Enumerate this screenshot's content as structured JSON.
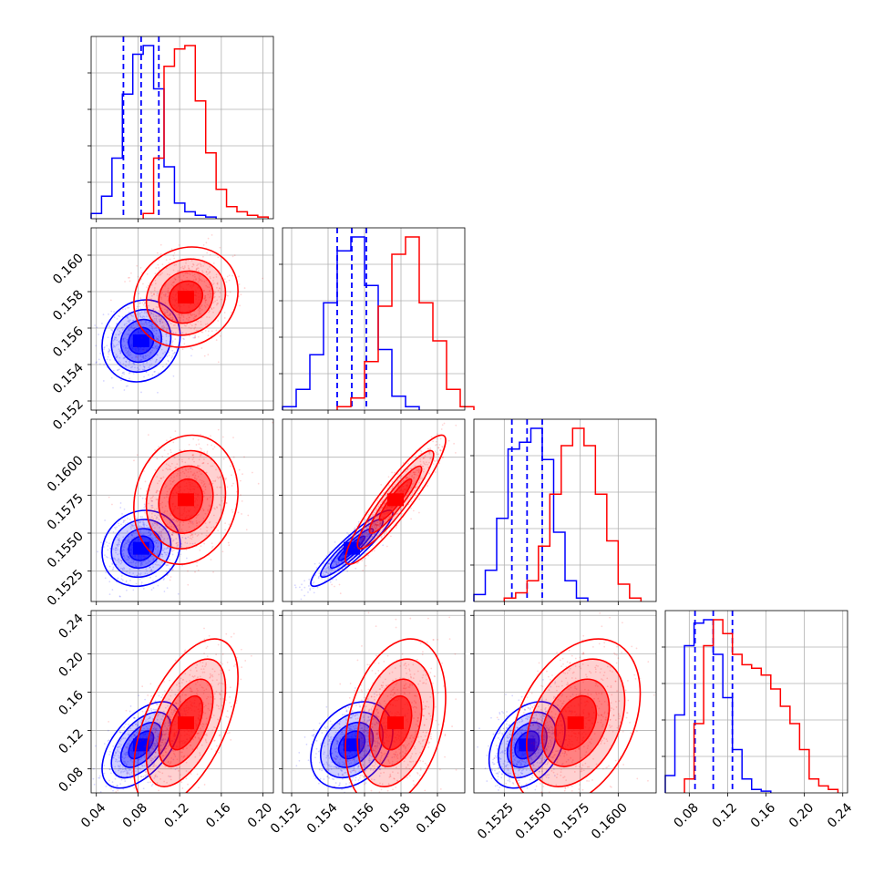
{
  "figure": {
    "layout": "corner plot",
    "dimensions": 4,
    "grid": true,
    "colors": {
      "blue": "#0000ff",
      "red": "#ff0000",
      "grid": "#b0b0b0"
    }
  },
  "chart_data": {
    "type": "corner",
    "title": "",
    "params": [
      {
        "name": "",
        "range": [
          0.035,
          0.21
        ],
        "ticks": [
          0.04,
          0.08,
          0.12,
          0.16,
          0.2
        ],
        "tick_labels": [
          "0.04",
          "0.08",
          "0.12",
          "0.16",
          "0.20"
        ]
      },
      {
        "name": "",
        "range": [
          0.1515,
          0.1615
        ],
        "ticks": [
          0.152,
          0.154,
          0.156,
          0.158,
          0.16
        ],
        "tick_labels": [
          "0.152",
          "0.154",
          "0.156",
          "0.158",
          "0.160"
        ]
      },
      {
        "name": "",
        "range": [
          0.1505,
          0.1625
        ],
        "ticks": [
          0.1525,
          0.155,
          0.1575,
          0.16
        ],
        "tick_labels": [
          "0.1525",
          "0.1550",
          "0.1575",
          "0.1600"
        ]
      },
      {
        "name": "",
        "range": [
          0.055,
          0.245
        ],
        "ticks": [
          0.08,
          0.12,
          0.16,
          0.2,
          0.24
        ],
        "tick_labels": [
          "0.08",
          "0.12",
          "0.16",
          "0.20",
          "0.24"
        ]
      }
    ],
    "series": [
      {
        "name": "",
        "color": "#0000ff",
        "mean": [
          0.083,
          0.1553,
          0.154,
          0.105
        ],
        "std": [
          0.015,
          0.0009,
          0.001,
          0.018
        ],
        "quantiles": [
          [
            0.066,
            0.083,
            0.1
          ],
          [
            0.1545,
            0.1553,
            0.1561
          ],
          [
            0.153,
            0.154,
            0.155
          ],
          [
            0.086,
            0.105,
            0.125
          ]
        ],
        "histograms": [
          {
            "edges": [
              0.035,
              0.045,
              0.055,
              0.065,
              0.075,
              0.085,
              0.095,
              0.105,
              0.115,
              0.125,
              0.135,
              0.145,
              0.155
            ],
            "counts": [
              0.03,
              0.13,
              0.35,
              0.72,
              0.95,
              1.0,
              0.75,
              0.3,
              0.09,
              0.04,
              0.02,
              0.01
            ]
          },
          {
            "edges": [
              0.1515,
              0.15225,
              0.153,
              0.15375,
              0.1545,
              0.15525,
              0.156,
              0.15675,
              0.1575,
              0.15825,
              0.159
            ],
            "counts": [
              0.02,
              0.12,
              0.32,
              0.62,
              0.92,
              1.0,
              0.72,
              0.35,
              0.08,
              0.02
            ]
          },
          {
            "edges": [
              0.1505,
              0.15125,
              0.152,
              0.15275,
              0.1535,
              0.15425,
              0.155,
              0.15575,
              0.1565,
              0.15725,
              0.158
            ],
            "counts": [
              0.04,
              0.18,
              0.48,
              0.88,
              0.92,
              1.0,
              0.82,
              0.4,
              0.12,
              0.02
            ]
          },
          {
            "edges": [
              0.055,
              0.065,
              0.075,
              0.085,
              0.095,
              0.105,
              0.115,
              0.125,
              0.135,
              0.145,
              0.155,
              0.165
            ],
            "counts": [
              0.1,
              0.45,
              0.85,
              0.98,
              1.0,
              0.8,
              0.55,
              0.25,
              0.08,
              0.02,
              0.01
            ]
          }
        ]
      },
      {
        "name": "",
        "color": "#ff0000",
        "mean": [
          0.126,
          0.1577,
          0.1572,
          0.128
        ],
        "std": [
          0.02,
          0.0011,
          0.0017,
          0.035
        ],
        "quantiles": null,
        "histograms": [
          {
            "edges": [
              0.085,
              0.095,
              0.105,
              0.115,
              0.125,
              0.135,
              0.145,
              0.155,
              0.165,
              0.175,
              0.185,
              0.195,
              0.205
            ],
            "counts": [
              0.03,
              0.35,
              0.88,
              0.98,
              1.0,
              0.68,
              0.38,
              0.17,
              0.07,
              0.04,
              0.02,
              0.01
            ]
          },
          {
            "edges": [
              0.1545,
              0.15525,
              0.156,
              0.15675,
              0.1575,
              0.15825,
              0.159,
              0.15975,
              0.1605,
              0.16125,
              0.162
            ],
            "counts": [
              0.02,
              0.07,
              0.28,
              0.6,
              0.9,
              1.0,
              0.62,
              0.4,
              0.12,
              0.02
            ]
          },
          {
            "edges": [
              0.1525,
              0.15325,
              0.154,
              0.15475,
              0.1555,
              0.15625,
              0.157,
              0.15775,
              0.1585,
              0.15925,
              0.16,
              0.16075,
              0.1615
            ],
            "counts": [
              0.02,
              0.05,
              0.12,
              0.32,
              0.62,
              0.9,
              1.0,
              0.9,
              0.62,
              0.35,
              0.1,
              0.02
            ]
          },
          {
            "edges": [
              0.075,
              0.085,
              0.095,
              0.105,
              0.115,
              0.125,
              0.135,
              0.145,
              0.155,
              0.165,
              0.175,
              0.185,
              0.195,
              0.205,
              0.215,
              0.225,
              0.235
            ],
            "counts": [
              0.08,
              0.4,
              0.85,
              1.0,
              0.92,
              0.8,
              0.74,
              0.72,
              0.68,
              0.6,
              0.5,
              0.4,
              0.25,
              0.08,
              0.04,
              0.02
            ]
          }
        ]
      }
    ]
  }
}
